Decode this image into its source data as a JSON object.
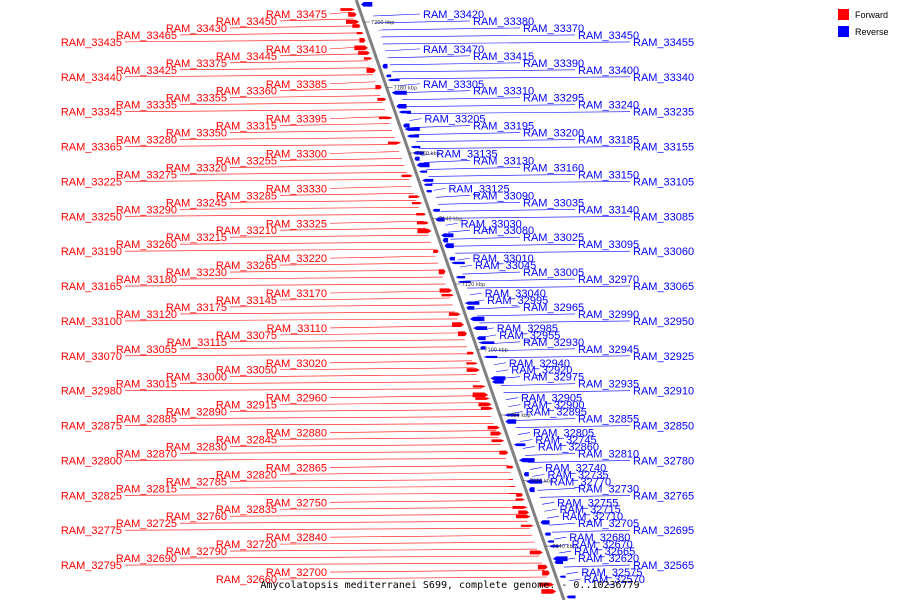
{
  "caption": "Amycolatopsis mediterranei S699, complete genome. - 0..10236779",
  "legend": [
    {
      "label": "Forward",
      "color": "#ff0000"
    },
    {
      "label": "Reverse",
      "color": "#0000ff"
    }
  ],
  "colors": {
    "forward": "#ff0000",
    "reverse": "#0000ff",
    "backbone": "#808080"
  },
  "ticks": [
    "7200 kbp",
    "7180 kbp",
    "7160 kbp",
    "7140 kbp",
    "7120 kbp",
    "7100 kbp",
    "7080 kbp",
    "7060 kbp",
    "7040 kbp"
  ],
  "forward_labels": [
    "RAM_33475",
    "RAM_33450",
    "RAM_33430",
    "RAM_33465",
    "RAM_33435",
    "RAM_33410",
    "RAM_33445",
    "RAM_33375",
    "RAM_33425",
    "RAM_33440",
    "RAM_33385",
    "RAM_33360",
    "RAM_33355",
    "RAM_33335",
    "RAM_33345",
    "RAM_33395",
    "RAM_33315",
    "RAM_33350",
    "RAM_33280",
    "RAM_33365",
    "RAM_33300",
    "RAM_33255",
    "RAM_33320",
    "RAM_33275",
    "RAM_33225",
    "RAM_33330",
    "RAM_33285",
    "RAM_33245",
    "RAM_33290",
    "RAM_33250",
    "RAM_33325",
    "RAM_33210",
    "RAM_33215",
    "RAM_33260",
    "RAM_33190",
    "RAM_33220",
    "RAM_33265",
    "RAM_33230",
    "RAM_33180",
    "RAM_33165",
    "RAM_33170",
    "RAM_33145",
    "RAM_33175",
    "RAM_33120",
    "RAM_33100",
    "RAM_33110",
    "RAM_33075",
    "RAM_33115",
    "RAM_33055",
    "RAM_33070",
    "RAM_33020",
    "RAM_33050",
    "RAM_33000",
    "RAM_33015",
    "RAM_32980",
    "RAM_32960",
    "RAM_32915",
    "RAM_32890",
    "RAM_32885",
    "RAM_32875",
    "RAM_32880",
    "RAM_32845",
    "RAM_32830",
    "RAM_32870",
    "RAM_32800",
    "RAM_32865",
    "RAM_32820",
    "RAM_32785",
    "RAM_32815",
    "RAM_32825",
    "RAM_32750",
    "RAM_32835",
    "RAM_32760",
    "RAM_32725",
    "RAM_32775",
    "RAM_32840",
    "RAM_32720",
    "RAM_32790",
    "RAM_32690",
    "RAM_32795",
    "RAM_32700",
    "RAM_32660"
  ],
  "reverse_labels": [
    "RAM_33420",
    "RAM_33380",
    "RAM_33370",
    "RAM_33450",
    "RAM_33455",
    "RAM_33470",
    "RAM_33415",
    "RAM_33390",
    "RAM_33400",
    "RAM_33340",
    "RAM_33305",
    "RAM_33310",
    "RAM_33295",
    "RAM_33240",
    "RAM_33235",
    "RAM_33205",
    "RAM_33195",
    "RAM_33200",
    "RAM_33185",
    "RAM_33155",
    "RAM_33135",
    "RAM_33130",
    "RAM_33160",
    "RAM_33150",
    "RAM_33105",
    "RAM_33125",
    "RAM_33090",
    "RAM_33035",
    "RAM_33140",
    "RAM_33085",
    "RAM_33030",
    "RAM_33080",
    "RAM_33025",
    "RAM_33095",
    "RAM_33060",
    "RAM_33010",
    "RAM_33045",
    "RAM_33005",
    "RAM_32970",
    "RAM_33065",
    "RAM_33040",
    "RAM_32995",
    "RAM_32965",
    "RAM_32990",
    "RAM_32950",
    "RAM_32985",
    "RAM_32955",
    "RAM_32930",
    "RAM_32945",
    "RAM_32925",
    "RAM_32940",
    "RAM_32920",
    "RAM_32975",
    "RAM_32935",
    "RAM_32910",
    "RAM_32905",
    "RAM_32900",
    "RAM_32895",
    "RAM_32855",
    "RAM_32850",
    "RAM_32805",
    "RAM_32745",
    "RAM_32860",
    "RAM_32810",
    "RAM_32780",
    "RAM_32740",
    "RAM_32735",
    "RAM_32770",
    "RAM_32730",
    "RAM_32765",
    "RAM_32755",
    "RAM_32715",
    "RAM_32710",
    "RAM_32705",
    "RAM_32695",
    "RAM_32680",
    "RAM_32670",
    "RAM_32665",
    "RAM_32620",
    "RAM_32565",
    "RAM_32575",
    "RAM_32570"
  ]
}
